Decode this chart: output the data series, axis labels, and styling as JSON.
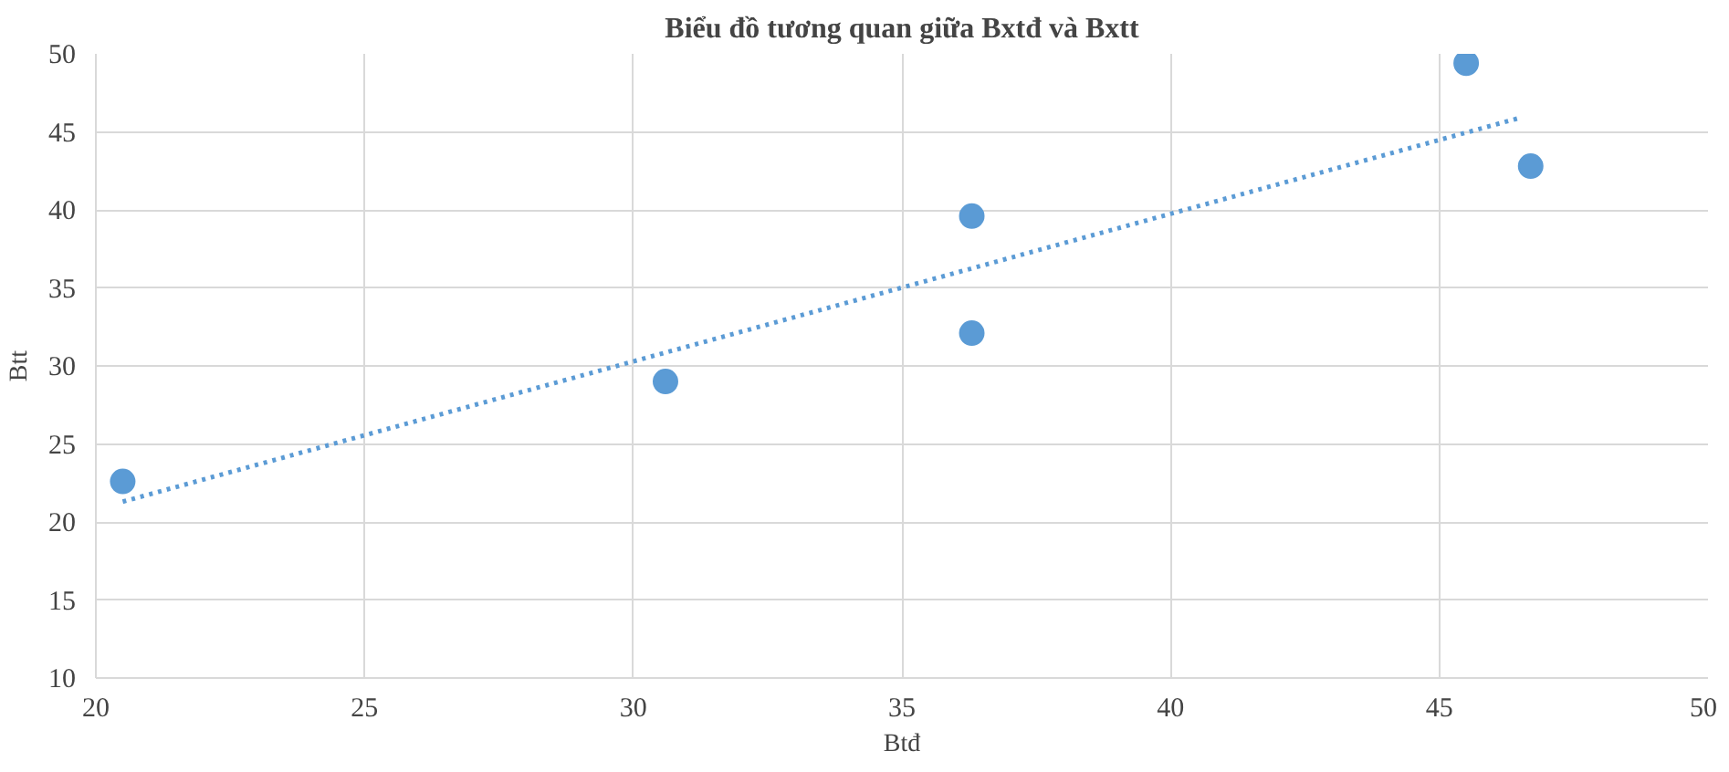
{
  "chart_data": {
    "type": "scatter",
    "title": "Biểu đồ tương quan giữa Bxtđ và Bxtt",
    "xlabel": "Btđ",
    "ylabel": "Btt",
    "xlim": [
      20,
      50
    ],
    "xticks": [
      20,
      25,
      30,
      35,
      40,
      45,
      50
    ],
    "ylim": [
      10,
      50
    ],
    "yticks": [
      10,
      15,
      20,
      25,
      30,
      35,
      40,
      45,
      50
    ],
    "grid": true,
    "series": [
      {
        "color": "#5b9bd5",
        "marker": "circle",
        "x": [
          20.5,
          30.6,
          36.3,
          36.3,
          45.5,
          46.7
        ],
        "values": [
          22.6,
          29.0,
          39.6,
          32.1,
          49.4,
          42.8
        ]
      },
      {
        "type": "line",
        "color": "#5b9bd5",
        "line_style": "dotted",
        "marker": "none",
        "x": [
          20.5,
          46.5
        ],
        "values": [
          21.3,
          45.9
        ]
      }
    ]
  }
}
